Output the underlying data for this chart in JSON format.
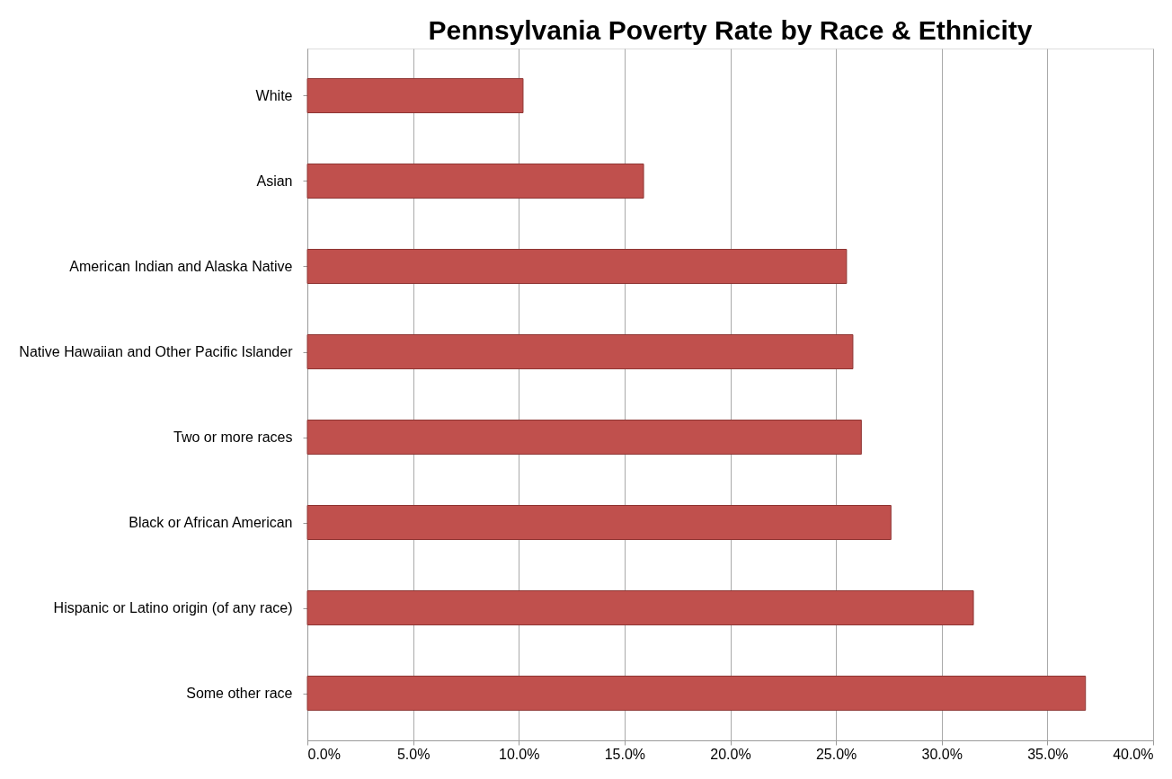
{
  "chart_data": {
    "type": "bar",
    "orientation": "horizontal",
    "title": "Pennsylvania Poverty Rate by Race & Ethnicity",
    "categories": [
      "White",
      "Asian",
      "American Indian and Alaska Native",
      "Native Hawaiian and Other Pacific Islander",
      "Two or more races",
      "Black or African American",
      "Hispanic or Latino origin (of any race)",
      "Some other race"
    ],
    "values": [
      10.2,
      15.9,
      25.5,
      25.8,
      26.2,
      27.6,
      31.5,
      36.8
    ],
    "color": "#c0504d",
    "xlim": [
      0,
      40
    ],
    "xticks": [
      {
        "value": 0,
        "label": "0.0%"
      },
      {
        "value": 5,
        "label": "5.0%"
      },
      {
        "value": 10,
        "label": "10.0%"
      },
      {
        "value": 15,
        "label": "15.0%"
      },
      {
        "value": 20,
        "label": "20.0%"
      },
      {
        "value": 25,
        "label": "25.0%"
      },
      {
        "value": 30,
        "label": "30.0%"
      },
      {
        "value": 35,
        "label": "35.0%"
      },
      {
        "value": 40,
        "label": "40.0%"
      }
    ],
    "grid": "x"
  }
}
